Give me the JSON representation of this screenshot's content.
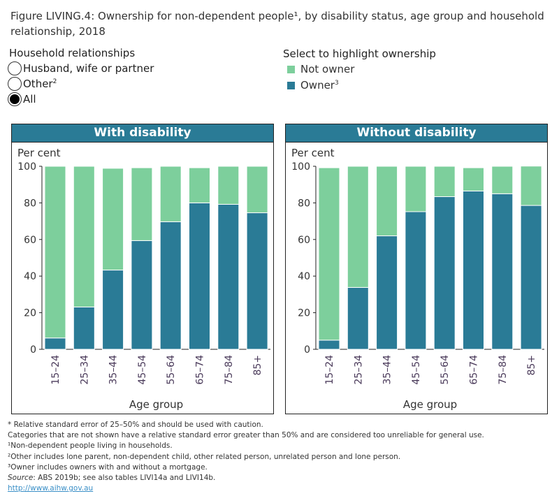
{
  "title": "Figure LIVING.4: Ownership for non-dependent people¹, by disability status, age group and household relationship, 2018",
  "filter": {
    "label": "Household relationships",
    "options": [
      {
        "label": "Husband, wife or partner",
        "sup": "",
        "selected": false
      },
      {
        "label": "Other",
        "sup": "2",
        "selected": false
      },
      {
        "label": "All",
        "sup": "",
        "selected": true
      }
    ]
  },
  "legend": {
    "label": "Select to highlight ownership",
    "items": [
      {
        "label": "Not owner",
        "sup": "",
        "color": "#7dcf9c"
      },
      {
        "label": "Owner",
        "sup": "3",
        "color": "#2a7b96"
      }
    ]
  },
  "chart_data": [
    {
      "type": "bar",
      "stacked": true,
      "title": "With disability",
      "ylabel": "Per cent",
      "xlabel": "Age group",
      "ylim": [
        0,
        100
      ],
      "yticks": [
        0,
        20,
        40,
        60,
        80,
        100
      ],
      "categories": [
        "15–24",
        "25–34",
        "35–44",
        "45–54",
        "55–64",
        "65–74",
        "75–84",
        "85+"
      ],
      "series": [
        {
          "name": "Owner",
          "color": "#2a7b96",
          "values": [
            6.2,
            23.1,
            43.3,
            59.4,
            69.7,
            80.0,
            79.2,
            74.6
          ]
        },
        {
          "name": "Not owner",
          "color": "#7dcf9c",
          "values": [
            93.8,
            76.9,
            55.6,
            39.8,
            30.3,
            19.2,
            20.8,
            25.4
          ]
        }
      ]
    },
    {
      "type": "bar",
      "stacked": true,
      "title": "Without disability",
      "ylabel": "Per cent",
      "xlabel": "Age group",
      "ylim": [
        0,
        100
      ],
      "yticks": [
        0,
        20,
        40,
        60,
        80,
        100
      ],
      "categories": [
        "15–24",
        "25–34",
        "35–44",
        "45–54",
        "55–64",
        "65–74",
        "75–84",
        "85+"
      ],
      "series": [
        {
          "name": "Owner",
          "color": "#2a7b96",
          "values": [
            5.0,
            33.8,
            62.0,
            75.2,
            83.4,
            86.5,
            85.0,
            78.6
          ]
        },
        {
          "name": "Not owner",
          "color": "#7dcf9c",
          "values": [
            94.2,
            66.2,
            38.0,
            24.8,
            16.6,
            12.7,
            15.0,
            21.5
          ]
        }
      ]
    }
  ],
  "notes": {
    "n1": "* Relative standard error of 25–50% and should be used with caution.",
    "n2": "Categories that are not shown have a relative standard error greater than 50% and are considered too unreliable for general use.",
    "n3": "¹Non-dependent people living in households.",
    "n4": "²Other includes lone parent, non-dependent child, other related person, unrelated person and lone person.",
    "n5": "³Owner includes owners with and without a mortgage.",
    "source_label": "Source",
    "source_text": ": ABS 2019b; see also tables LIVI14a and LIVI14b.",
    "link": "http://www.aihw.gov.au"
  }
}
